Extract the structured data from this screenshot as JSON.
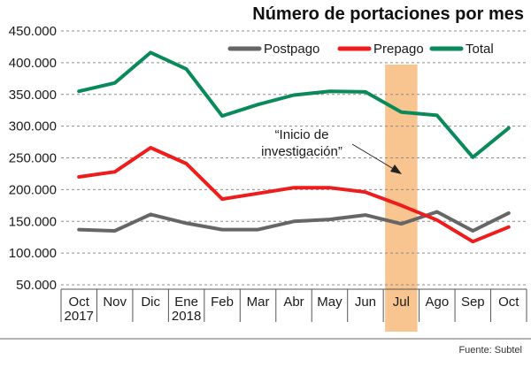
{
  "chart_data": {
    "type": "line",
    "title": "Número de portaciones por mes",
    "categories": [
      {
        "month": "Oct",
        "year": "2017"
      },
      {
        "month": "Nov",
        "year": ""
      },
      {
        "month": "Dic",
        "year": ""
      },
      {
        "month": "Ene",
        "year": "2018"
      },
      {
        "month": "Feb",
        "year": ""
      },
      {
        "month": "Mar",
        "year": ""
      },
      {
        "month": "Abr",
        "year": ""
      },
      {
        "month": "May",
        "year": ""
      },
      {
        "month": "Jun",
        "year": ""
      },
      {
        "month": "Jul",
        "year": ""
      },
      {
        "month": "Ago",
        "year": ""
      },
      {
        "month": "Sep",
        "year": ""
      },
      {
        "month": "Oct",
        "year": ""
      }
    ],
    "yticks": [
      "50.000",
      "100.000",
      "150.000",
      "200.000",
      "250.000",
      "300.000",
      "350.000",
      "400.000",
      "450.000"
    ],
    "ytick_values": [
      50000,
      100000,
      150000,
      200000,
      250000,
      300000,
      350000,
      400000,
      450000
    ],
    "ylim": [
      30000,
      455000
    ],
    "grid": true,
    "legend_position": "top-right",
    "series": [
      {
        "name": "Postpago",
        "color": "#666666",
        "values": [
          137000,
          135000,
          161000,
          147000,
          137000,
          137000,
          150000,
          153000,
          160000,
          146000,
          165000,
          135000,
          163000
        ]
      },
      {
        "name": "Prepago",
        "color": "#ee1c1c",
        "values": [
          220000,
          228000,
          266000,
          241000,
          185000,
          194000,
          203000,
          203000,
          196000,
          175000,
          152000,
          118000,
          141000
        ]
      },
      {
        "name": "Total",
        "color": "#0a8a5a",
        "values": [
          355000,
          368000,
          416000,
          390000,
          316000,
          334000,
          349000,
          355000,
          354000,
          322000,
          317000,
          251000,
          297000
        ]
      }
    ],
    "highlight": {
      "category_index": 9,
      "color": "#f8c48f"
    },
    "annotation": {
      "lines": [
        "“Inicio de",
        "investigación”"
      ],
      "points_to_index": 9
    },
    "source": "Fuente: Subtel"
  }
}
